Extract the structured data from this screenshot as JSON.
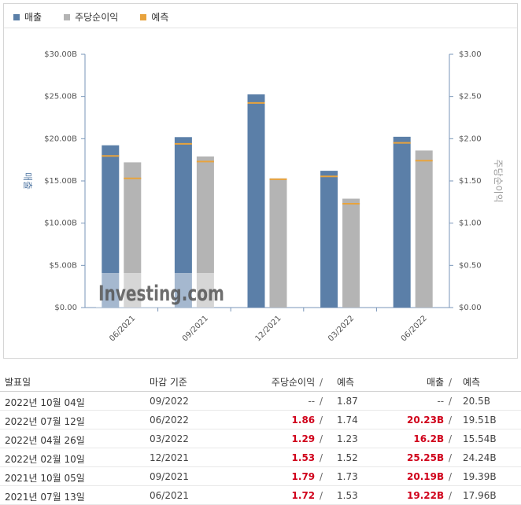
{
  "legend": {
    "revenue": "매출",
    "eps": "주당순이익",
    "forecast": "예측"
  },
  "colors": {
    "revenue": "#5b7fa8",
    "eps": "#b4b4b4",
    "forecast": "#e8a33d"
  },
  "chart_data": {
    "type": "bar",
    "categories": [
      "06/2021",
      "09/2021",
      "12/2021",
      "03/2022",
      "06/2022"
    ],
    "series": [
      {
        "name": "매출",
        "axis": "left",
        "values": [
          19.22,
          20.19,
          25.25,
          16.2,
          20.23
        ],
        "forecast": [
          17.96,
          19.39,
          24.24,
          15.54,
          19.51
        ]
      },
      {
        "name": "주당순이익",
        "axis": "right",
        "values": [
          1.72,
          1.79,
          1.53,
          1.29,
          1.86
        ],
        "forecast": [
          1.53,
          1.73,
          1.52,
          1.23,
          1.74
        ]
      }
    ],
    "ylabel": "매출",
    "y2label": "주당순이익",
    "ylim": [
      0,
      30
    ],
    "y2lim": [
      0,
      3
    ],
    "left_ticks": [
      "$0.00",
      "$5.00B",
      "$10.00B",
      "$15.00B",
      "$20.00B",
      "$25.00B",
      "$30.00B"
    ],
    "right_ticks": [
      "$0.00",
      "$0.50",
      "$1.00",
      "$1.50",
      "$2.00",
      "$2.50",
      "$3.00"
    ],
    "watermark": "Investing.com"
  },
  "table": {
    "headers": {
      "date": "발표일",
      "period_end": "마감 기준",
      "eps": "주당순이익",
      "slash": "/",
      "eps_forecast": "예측",
      "revenue": "매출",
      "revenue_forecast": "예측"
    },
    "rows": [
      {
        "date": "2022년 10월 04일",
        "period_end": "09/2022",
        "eps": "--",
        "eps_forecast": "1.87",
        "revenue": "--",
        "revenue_forecast": "20.5B"
      },
      {
        "date": "2022년 07월 12일",
        "period_end": "06/2022",
        "eps": "1.86",
        "eps_forecast": "1.74",
        "revenue": "20.23B",
        "revenue_forecast": "19.51B"
      },
      {
        "date": "2022년 04월 26일",
        "period_end": "03/2022",
        "eps": "1.29",
        "eps_forecast": "1.23",
        "revenue": "16.2B",
        "revenue_forecast": "15.54B"
      },
      {
        "date": "2022년 02월 10일",
        "period_end": "12/2021",
        "eps": "1.53",
        "eps_forecast": "1.52",
        "revenue": "25.25B",
        "revenue_forecast": "24.24B"
      },
      {
        "date": "2021년 10월 05일",
        "period_end": "09/2021",
        "eps": "1.79",
        "eps_forecast": "1.73",
        "revenue": "20.19B",
        "revenue_forecast": "19.39B"
      },
      {
        "date": "2021년 07월 13일",
        "period_end": "06/2021",
        "eps": "1.72",
        "eps_forecast": "1.53",
        "revenue": "19.22B",
        "revenue_forecast": "17.96B"
      }
    ]
  }
}
